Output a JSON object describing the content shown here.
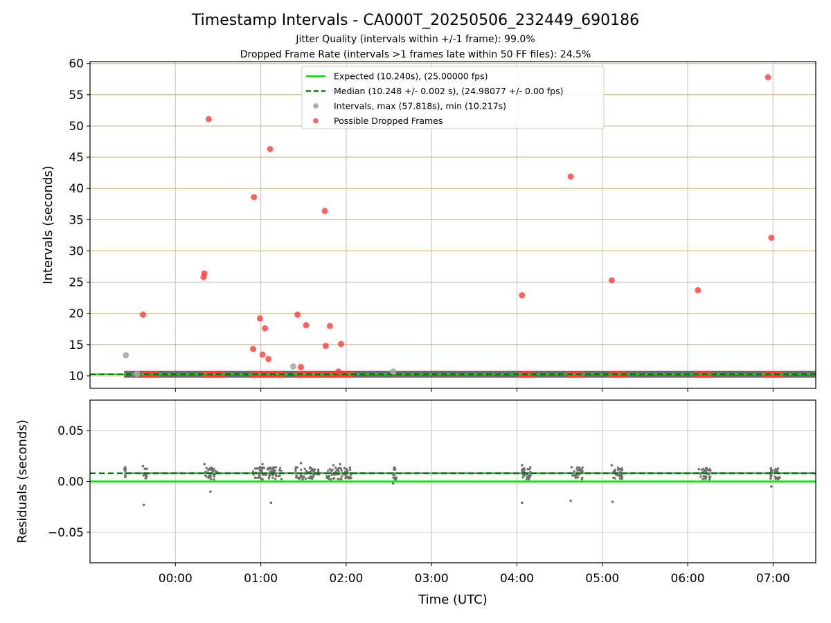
{
  "title": "Timestamp Intervals - CA000T_20250506_232449_690186",
  "subtitle1": "Jitter Quality (intervals within +/-1 frame): 99.0%",
  "subtitle2": "Dropped Frame Rate (intervals >1 frames late within 50 FF files): 24.5%",
  "colors": {
    "expected": "#00e600",
    "median": "#007a00",
    "intervals": "#a9a9a9",
    "dropped": "#ff3b3b",
    "hgrid": "#d2b970",
    "vgrid": "#cccccc",
    "band": "#555555"
  },
  "chart_data": [
    {
      "type": "scatter",
      "ylabel": "Intervals (seconds)",
      "ylim": [
        8,
        60.3
      ],
      "yticks": [
        10,
        15,
        20,
        25,
        30,
        35,
        40,
        45,
        50,
        55,
        60
      ],
      "xlim": [
        -1.0,
        7.5
      ],
      "grid": true,
      "legend_position": "top-center",
      "legend": [
        "Expected (10.240s), (25.00000 fps)",
        "Median (10.248 +/- 0.002 s), (24.98077 +/- 0.00 fps)",
        "Intervals, max (57.818s), min (10.217s)",
        "Possible Dropped Frames"
      ],
      "expected_interval": 10.24,
      "median_interval": 10.248,
      "series": [
        {
          "name": "Intervals, max (57.818s), min (10.217s)",
          "points": [
            [
              -0.58,
              13.3
            ],
            [
              -0.45,
              10.3
            ],
            [
              1.38,
              11.5
            ],
            [
              2.55,
              10.7
            ]
          ]
        },
        {
          "name": "Possible Dropped Frames",
          "points": [
            [
              -0.38,
              19.8
            ],
            [
              0.33,
              25.8
            ],
            [
              0.34,
              26.4
            ],
            [
              0.39,
              51.1
            ],
            [
              0.92,
              38.6
            ],
            [
              0.91,
              14.3
            ],
            [
              0.99,
              19.2
            ],
            [
              1.02,
              13.4
            ],
            [
              1.05,
              17.6
            ],
            [
              1.09,
              12.7
            ],
            [
              1.11,
              46.3
            ],
            [
              1.43,
              19.8
            ],
            [
              1.47,
              11.4
            ],
            [
              1.53,
              18.1
            ],
            [
              1.75,
              36.4
            ],
            [
              1.76,
              14.8
            ],
            [
              1.81,
              18.0
            ],
            [
              1.91,
              10.7
            ],
            [
              1.94,
              15.1
            ],
            [
              4.06,
              22.9
            ],
            [
              4.63,
              41.9
            ],
            [
              5.11,
              25.3
            ],
            [
              6.12,
              23.7
            ],
            [
              6.94,
              57.8
            ],
            [
              6.98,
              32.1
            ]
          ]
        }
      ],
      "dropped_clusters": [
        [
          -0.38,
          -0.22
        ],
        [
          0.33,
          0.57
        ],
        [
          0.9,
          1.27
        ],
        [
          1.42,
          1.7
        ],
        [
          1.76,
          2.07
        ],
        [
          4.03,
          4.19
        ],
        [
          4.6,
          4.77
        ],
        [
          5.1,
          5.27
        ],
        [
          6.1,
          6.27
        ],
        [
          6.9,
          7.1
        ]
      ],
      "dense_band": [
        -0.6,
        7.5
      ]
    },
    {
      "type": "scatter",
      "xlabel": "Time (UTC)",
      "ylabel": "Residuals (seconds)",
      "ylim": [
        -0.08,
        0.08
      ],
      "yticks": [
        -0.05,
        0.0,
        0.05
      ],
      "ytick_labels": [
        "−0.05",
        "0.00",
        "0.05"
      ],
      "xticks": [
        0,
        1,
        2,
        3,
        4,
        5,
        6,
        7
      ],
      "xtick_labels": [
        "00:00",
        "01:00",
        "02:00",
        "03:00",
        "04:00",
        "05:00",
        "06:00",
        "07:00"
      ],
      "grid": true,
      "expected_residual": 0.0,
      "median_residual": 0.008,
      "clusters": [
        [
          -0.6,
          0.02
        ],
        [
          -0.38,
          0.05
        ],
        [
          0.35,
          0.15
        ],
        [
          0.9,
          0.35
        ],
        [
          1.4,
          0.28
        ],
        [
          1.77,
          0.3
        ],
        [
          2.55,
          0.04
        ],
        [
          4.05,
          0.12
        ],
        [
          4.65,
          0.12
        ],
        [
          5.12,
          0.12
        ],
        [
          6.15,
          0.12
        ],
        [
          6.97,
          0.12
        ]
      ],
      "outliers": [
        [
          -0.38,
          0.015
        ],
        [
          -0.37,
          -0.023
        ],
        [
          0.34,
          0.017
        ],
        [
          0.41,
          -0.01
        ],
        [
          0.99,
          0.014
        ],
        [
          1.02,
          0.017
        ],
        [
          1.12,
          -0.021
        ],
        [
          1.47,
          0.018
        ],
        [
          1.85,
          0.016
        ],
        [
          1.93,
          0.017
        ],
        [
          2.55,
          -0.002
        ],
        [
          2.56,
          0.012
        ],
        [
          4.06,
          0.016
        ],
        [
          4.06,
          -0.021
        ],
        [
          4.63,
          -0.019
        ],
        [
          4.64,
          0.014
        ],
        [
          5.11,
          0.016
        ],
        [
          5.12,
          -0.02
        ],
        [
          6.13,
          0.012
        ],
        [
          6.98,
          -0.005
        ],
        [
          6.98,
          0.011
        ]
      ]
    }
  ]
}
